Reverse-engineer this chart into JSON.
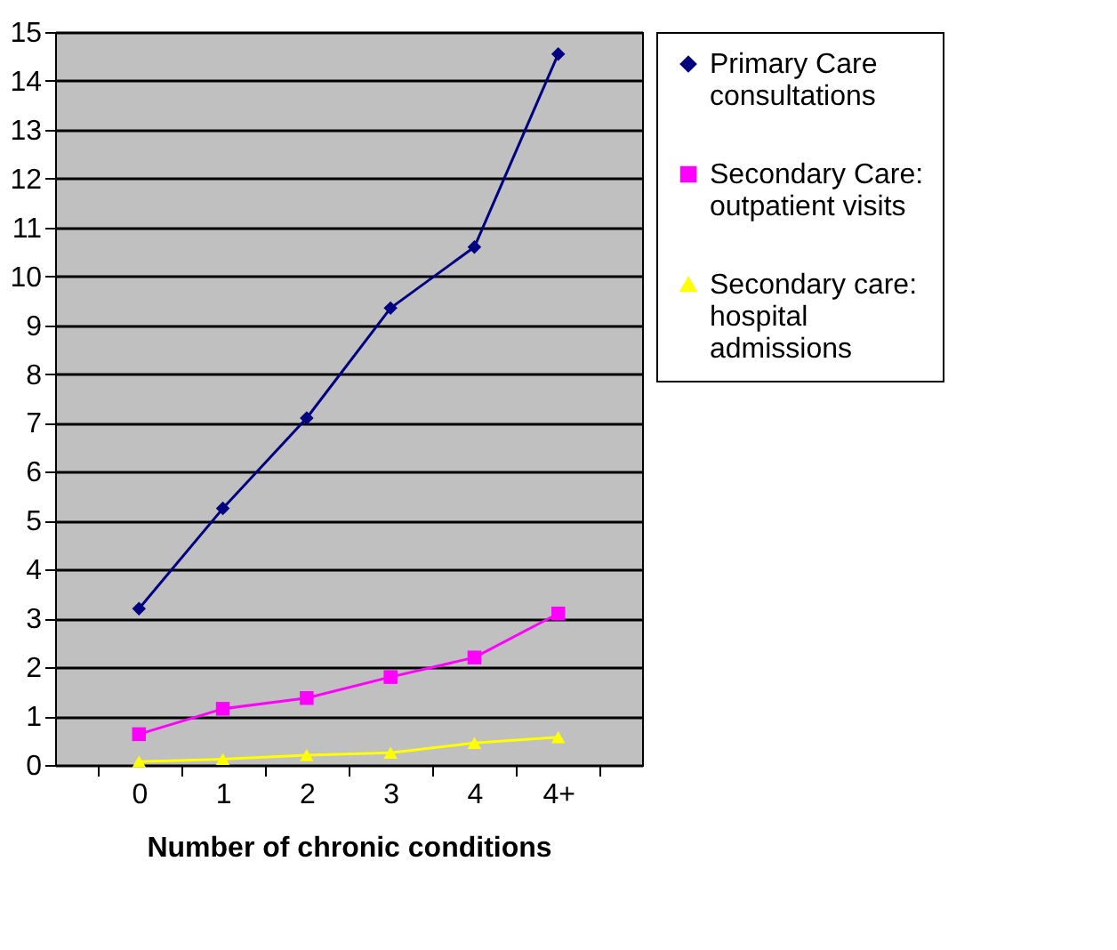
{
  "chart_data": {
    "type": "line",
    "xlabel": "Number of chronic conditions",
    "categories": [
      "0",
      "1",
      "2",
      "3",
      "4",
      "4+"
    ],
    "series": [
      {
        "name": "Primary Care consultations",
        "color": "#000080",
        "marker": "diamond",
        "values": [
          3.2,
          5.25,
          7.1,
          9.35,
          10.6,
          14.55
        ]
      },
      {
        "name": "Secondary Care: outpatient visits",
        "color": "#ff00ff",
        "marker": "square",
        "values": [
          0.63,
          1.15,
          1.37,
          1.8,
          2.2,
          3.1
        ]
      },
      {
        "name": "Secondary care: hospital admissions",
        "color": "#ffff00",
        "marker": "triangle",
        "values": [
          0.07,
          0.12,
          0.2,
          0.25,
          0.45,
          0.57
        ]
      }
    ],
    "ylim": [
      0,
      15
    ],
    "yticks": [
      0,
      1,
      2,
      3,
      4,
      5,
      6,
      7,
      8,
      9,
      10,
      11,
      12,
      13,
      14,
      15
    ],
    "grid": "y",
    "legend": "right"
  }
}
